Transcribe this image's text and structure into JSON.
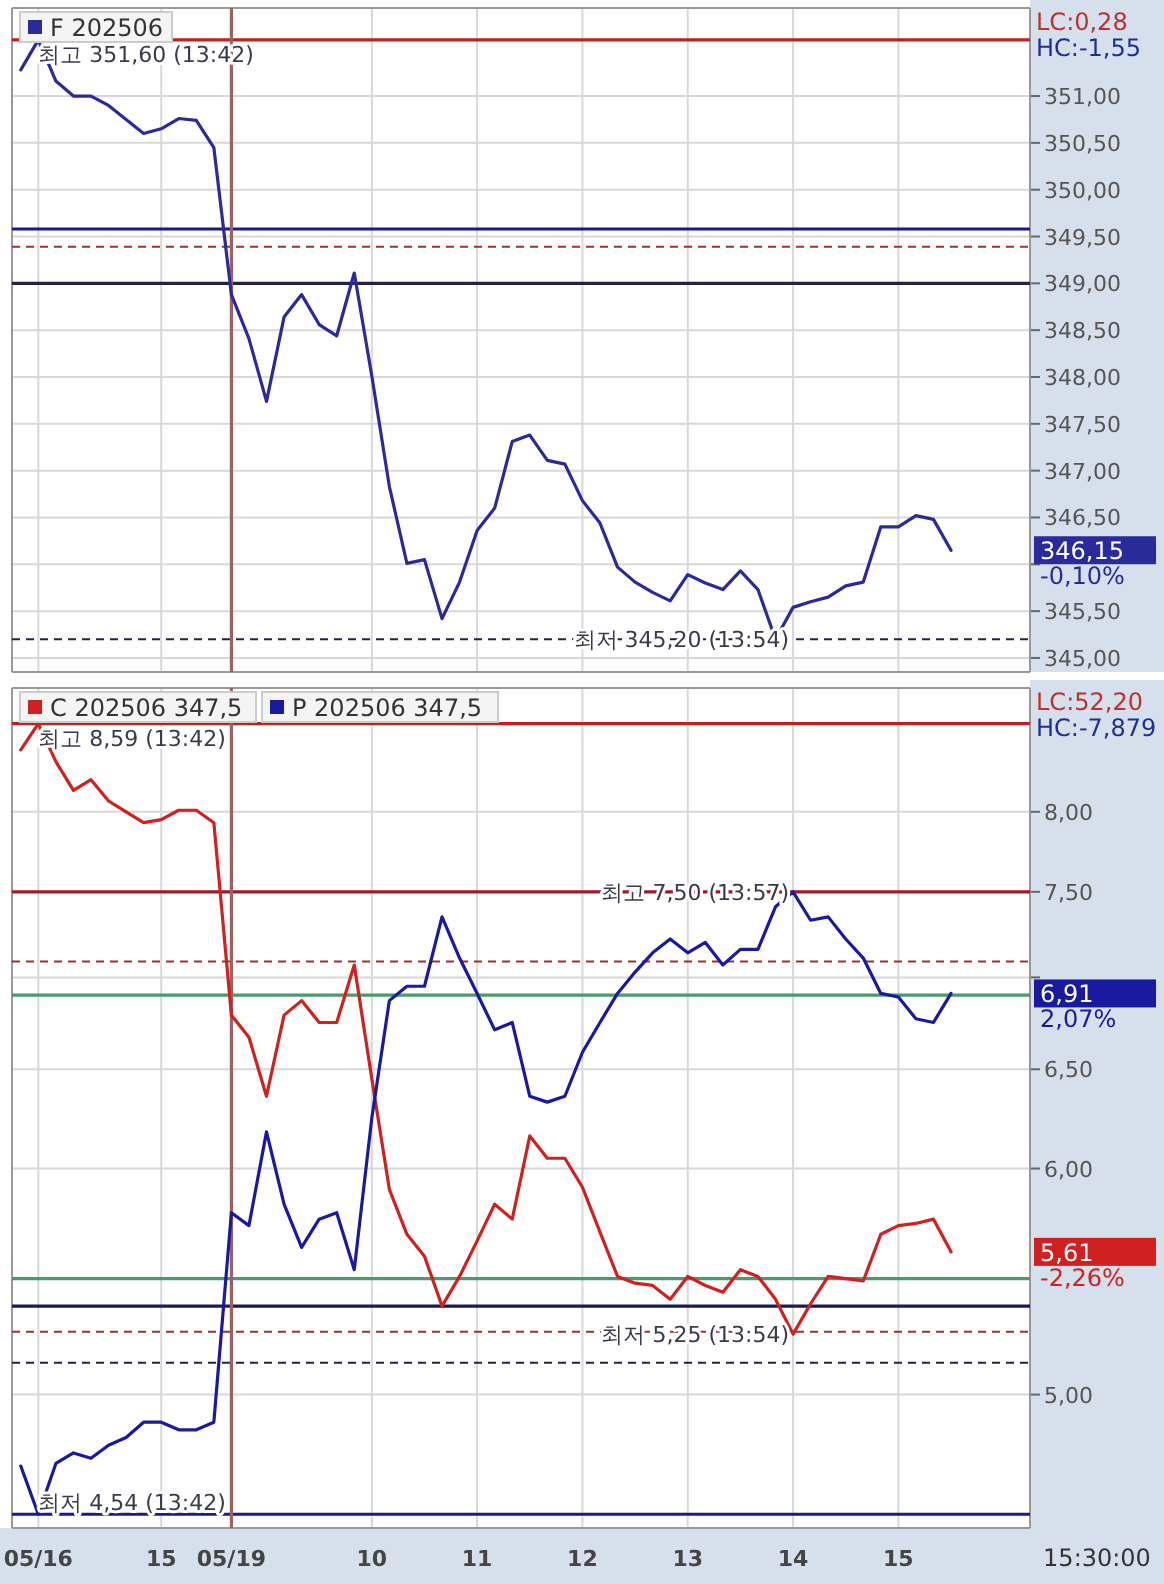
{
  "chart_data": [
    {
      "type": "line",
      "ylim": [
        344.85,
        351.94
      ],
      "grid": true,
      "legend": "top left",
      "marker": "none",
      "line_style": "solid",
      "tick_labels": "y",
      "categories": [
        null,
        "05/16",
        null,
        null,
        null,
        null,
        null,
        null,
        "15",
        null,
        null,
        null,
        "05/19",
        null,
        null,
        null,
        null,
        null,
        null,
        null,
        "10",
        null,
        null,
        null,
        null,
        null,
        "11",
        null,
        null,
        null,
        null,
        null,
        "12",
        null,
        null,
        null,
        null,
        null,
        "13",
        null,
        null,
        null,
        null,
        null,
        "14",
        null,
        null,
        null,
        null,
        null,
        "15",
        null,
        null,
        null,
        null,
        null,
        null,
        null
      ],
      "yticks": [
        {
          "value": 345,
          "label": "345,00"
        },
        {
          "value": 345.5,
          "label": "345,50"
        },
        {
          "value": 346,
          "label": null
        },
        {
          "value": 346.5,
          "label": "346,50"
        },
        {
          "value": 347,
          "label": "347,00"
        },
        {
          "value": 347.5,
          "label": "347,50"
        },
        {
          "value": 348,
          "label": "348,00"
        },
        {
          "value": 348.5,
          "label": "348,50"
        },
        {
          "value": 349,
          "label": "349,00"
        },
        {
          "value": 349.5,
          "label": "349,50"
        },
        {
          "value": 350,
          "label": "350,00"
        },
        {
          "value": 350.5,
          "label": "350,50"
        },
        {
          "value": 351,
          "label": "351,00"
        }
      ],
      "series": [
        {
          "name": "F 202506",
          "color": "#2a2a9a",
          "values": [
            351.28,
            351.6,
            351.16,
            351.0,
            351.0,
            350.9,
            350.75,
            350.6,
            350.65,
            350.76,
            350.74,
            350.45,
            348.88,
            348.41,
            347.74,
            348.64,
            348.88,
            348.56,
            348.44,
            349.11,
            348.01,
            346.83,
            346.01,
            346.05,
            345.42,
            345.81,
            346.36,
            346.6,
            347.31,
            347.38,
            347.11,
            347.07,
            346.68,
            346.44,
            345.97,
            345.81,
            345.7,
            345.61,
            345.89,
            345.8,
            345.73,
            345.93,
            345.73,
            345.2,
            345.54,
            345.6,
            345.65,
            345.77,
            345.81,
            346.4,
            346.4,
            346.52,
            346.48,
            346.15,
            null,
            null,
            null,
            null
          ]
        }
      ],
      "ref_lines": [
        {
          "axis": "y",
          "value": 351.6,
          "color": "#c02020",
          "line_style": "solid"
        },
        {
          "axis": "y",
          "value": 349.58,
          "color": "#1a1a8a",
          "line_style": "solid"
        },
        {
          "axis": "y",
          "value": 349.39,
          "color": "#a03030",
          "line_style": "dashed"
        },
        {
          "axis": "y",
          "value": 349.0,
          "color": "#222244",
          "line_style": "solid"
        },
        {
          "axis": "y",
          "value": 345.2,
          "color": "#222244",
          "line_style": "dashed"
        },
        {
          "axis": "x",
          "value": "05/19",
          "color": "#a06060",
          "line_style": "solid"
        }
      ],
      "annotations": [
        "LC:0,28",
        "HC:-1,55",
        "346,15",
        "-0,10%",
        {
          "text": "최고 351,60 (13:42)",
          "x": "05/16",
          "y": 351.6
        },
        {
          "text": "최저 345,20 (13:54)",
          "x": "14",
          "y": 345.2
        }
      ]
    },
    {
      "type": "line",
      "ylim": [
        4.49,
        8.84
      ],
      "log": "y",
      "grid": true,
      "legend": "top left",
      "marker": "none",
      "line_style": "solid",
      "categories": [
        null,
        "05/16",
        null,
        null,
        null,
        null,
        null,
        null,
        "15",
        null,
        null,
        null,
        "05/19",
        null,
        null,
        null,
        null,
        null,
        null,
        null,
        "10",
        null,
        null,
        null,
        null,
        null,
        "11",
        null,
        null,
        null,
        null,
        null,
        "12",
        null,
        null,
        null,
        null,
        null,
        "13",
        null,
        null,
        null,
        null,
        null,
        "14",
        null,
        null,
        null,
        null,
        null,
        "15",
        null,
        null,
        null,
        null,
        null,
        null,
        null
      ],
      "yticks": [
        {
          "value": 5,
          "label": "5,00"
        },
        {
          "value": 6,
          "label": "6,00"
        },
        {
          "value": 6.5,
          "label": "6,50"
        },
        {
          "value": 7,
          "label": null
        },
        {
          "value": 7.5,
          "label": "7,50"
        },
        {
          "value": 8,
          "label": "8,00"
        }
      ],
      "series": [
        {
          "name": "C 202506 347,5",
          "color": "#d02020",
          "values": [
            8.41,
            8.59,
            8.33,
            8.14,
            8.21,
            8.07,
            8.0,
            7.93,
            7.95,
            8.01,
            8.01,
            7.93,
            6.79,
            6.67,
            6.36,
            6.79,
            6.87,
            6.75,
            6.75,
            7.07,
            6.45,
            5.9,
            5.69,
            5.59,
            5.37,
            5.5,
            5.66,
            5.83,
            5.76,
            6.16,
            6.05,
            6.05,
            5.91,
            5.7,
            5.5,
            5.47,
            5.46,
            5.4,
            5.5,
            5.46,
            5.43,
            5.53,
            5.5,
            5.4,
            5.25,
            5.38,
            5.5,
            5.49,
            5.48,
            5.69,
            5.73,
            5.74,
            5.76,
            5.61,
            null,
            null,
            null,
            null
          ]
        },
        {
          "name": "P 202506 347,5",
          "color": "#1a1aa0",
          "values": [
            4.72,
            4.54,
            4.73,
            4.77,
            4.75,
            4.8,
            4.83,
            4.89,
            4.89,
            4.86,
            4.86,
            4.89,
            5.79,
            5.73,
            6.18,
            5.83,
            5.63,
            5.76,
            5.79,
            5.53,
            6.25,
            6.87,
            6.95,
            6.95,
            7.35,
            7.11,
            6.91,
            6.71,
            6.75,
            6.36,
            6.33,
            6.36,
            6.59,
            6.75,
            6.91,
            7.03,
            7.14,
            7.22,
            7.14,
            7.2,
            7.07,
            7.16,
            7.16,
            7.41,
            7.5,
            7.33,
            7.35,
            7.22,
            7.11,
            6.91,
            6.89,
            6.77,
            6.75,
            6.91,
            null,
            null,
            null,
            null
          ]
        }
      ],
      "ref_lines": [
        {
          "axis": "y",
          "value": 8.59,
          "color": "#c02020",
          "line_style": "solid"
        },
        {
          "axis": "y",
          "value": 7.5,
          "color": "#a01a2a",
          "line_style": "solid"
        },
        {
          "axis": "y",
          "value": 7.09,
          "color": "#a03030",
          "line_style": "dashed"
        },
        {
          "axis": "y",
          "value": 6.9,
          "color": "#4a9a6a",
          "line_style": "solid"
        },
        {
          "axis": "y",
          "value": 5.49,
          "color": "#4a9a6a",
          "line_style": "solid"
        },
        {
          "axis": "y",
          "value": 5.37,
          "color": "#1a1a5a",
          "line_style": "solid"
        },
        {
          "axis": "y",
          "value": 5.26,
          "color": "#a03030",
          "line_style": "dashed"
        },
        {
          "axis": "y",
          "value": 5.13,
          "color": "#222244",
          "line_style": "dashed"
        },
        {
          "axis": "y",
          "value": 4.54,
          "color": "#1a1a8a",
          "line_style": "solid"
        },
        {
          "axis": "x",
          "value": "05/19",
          "color": "#a06060",
          "line_style": "solid"
        }
      ],
      "annotations": [
        "LC:52,20",
        "HC:-7,879",
        "5,61",
        "-2,26%",
        "6,91",
        "2,07%",
        "15:30:00",
        {
          "text": "최고 8,59 (13:42)",
          "x": "05/16",
          "y": 8.59
        },
        {
          "text": "최고 7,50 (13:57)",
          "x": "14",
          "y": 7.5
        },
        {
          "text": "최저 5,25 (13:54)",
          "x": "14",
          "y": 5.25
        },
        {
          "text": "최저 4,54 (13:42)",
          "x": "05/16",
          "y": 4.54
        }
      ]
    }
  ]
}
